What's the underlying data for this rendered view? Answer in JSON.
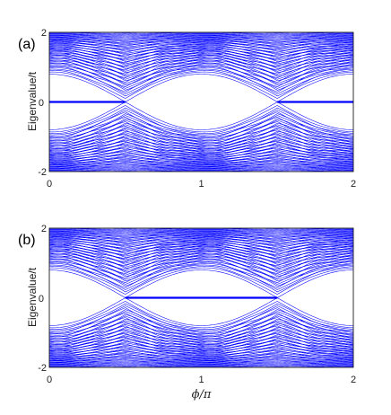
{
  "chart_data": [
    {
      "type": "line",
      "panel_label": "(a)",
      "ylabel": "Eigenvalue/t",
      "xlabel": "",
      "xlim": [
        0,
        2
      ],
      "ylim": [
        -2,
        2
      ],
      "x_ticks": [
        "0",
        "1",
        "2"
      ],
      "y_ticks": [
        "-2",
        "0",
        "2"
      ],
      "series_color": "#0000ff",
      "grid": false,
      "bulk_band": {
        "edge_max": 0.8,
        "edge_at_phi_0_and_1_and_2": 0.8,
        "gap_closing_phi": [
          0.5,
          1.5
        ],
        "outer_limit": 2.0
      },
      "zero_modes": [
        {
          "x_range": [
            0,
            0.5
          ],
          "y": 0
        },
        {
          "x_range": [
            1.5,
            2
          ],
          "y": 0
        }
      ]
    },
    {
      "type": "line",
      "panel_label": "(b)",
      "ylabel": "Eigenvalue/t",
      "xlabel": "ϕ/π",
      "xlim": [
        0,
        2
      ],
      "ylim": [
        -2,
        2
      ],
      "x_ticks": [
        "0",
        "1",
        "2"
      ],
      "y_ticks": [
        "-2",
        "0",
        "2"
      ],
      "series_color": "#0000ff",
      "grid": false,
      "bulk_band": {
        "edge_max": 0.8,
        "edge_at_phi_0_and_1_and_2": 0.8,
        "gap_closing_phi": [
          0.5,
          1.5
        ],
        "outer_limit": 2.0
      },
      "zero_modes": [
        {
          "x_range": [
            0.5,
            1.5
          ],
          "y": 0
        }
      ]
    }
  ]
}
